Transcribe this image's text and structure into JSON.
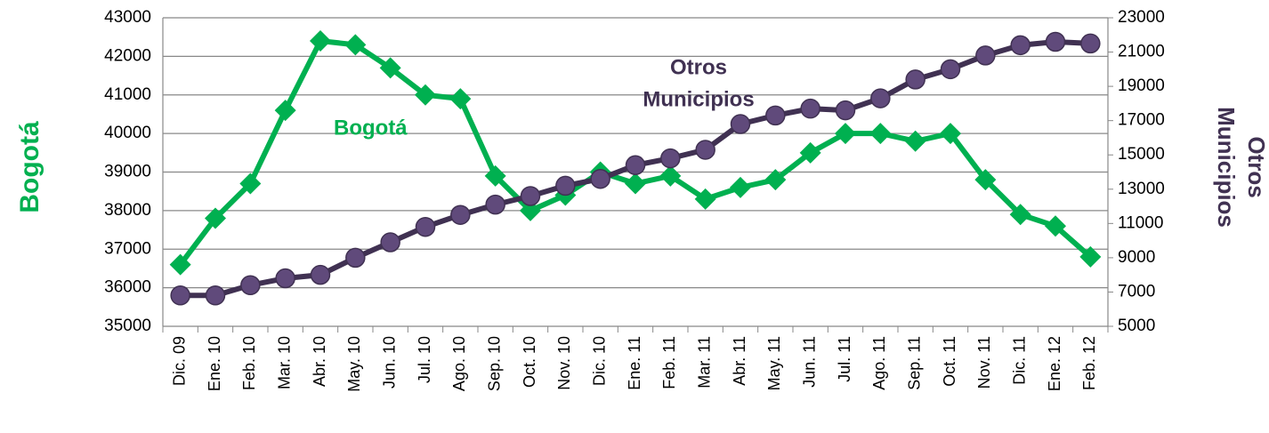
{
  "chart_data": {
    "type": "line",
    "categories": [
      "Dic. 09",
      "Ene. 10",
      "Feb. 10",
      "Mar. 10",
      "Abr. 10",
      "May. 10",
      "Jun. 10",
      "Jul. 10",
      "Ago. 10",
      "Sep. 10",
      "Oct. 10",
      "Nov. 10",
      "Dic. 10",
      "Ene. 11",
      "Feb. 11",
      "Mar. 11",
      "Abr. 11",
      "May. 11",
      "Jun. 11",
      "Jul. 11",
      "Ago. 11",
      "Sep. 11",
      "Oct. 11",
      "Nov. 11",
      "Dic. 11",
      "Ene. 12",
      "Feb. 12"
    ],
    "series": [
      {
        "name": "Bogotá",
        "color": "#00b050",
        "marker": "diamond",
        "values": [
          36600,
          37800,
          38700,
          40600,
          42400,
          42300,
          41700,
          41000,
          40900,
          38900,
          38000,
          38400,
          39000,
          38700,
          38900,
          38300,
          38600,
          38800,
          39500,
          40000,
          40000,
          39800,
          40000,
          38800,
          37900,
          37600,
          36800
        ]
      },
      {
        "name": "Otros Municipios",
        "color": "#403152",
        "marker_color": "#604a7b",
        "marker": "circle",
        "axis": "y2",
        "values": [
          6800,
          6800,
          7400,
          7800,
          8000,
          9000,
          9900,
          10800,
          11500,
          12100,
          12600,
          13200,
          13600,
          14400,
          14800,
          15300,
          16800,
          17300,
          17700,
          17600,
          18300,
          19400,
          20000,
          20800,
          21400,
          21600,
          21500
        ]
      }
    ],
    "ylabel": "Bogotá",
    "y2label": [
      "Otros",
      "Municipios"
    ],
    "annotations": [
      {
        "lines": [
          "Bogotá"
        ],
        "color": "#00b050"
      },
      {
        "lines": [
          "Otros",
          "Municipios"
        ],
        "color": "#403152"
      }
    ],
    "ylim": [
      35000,
      43000
    ],
    "yticks": [
      35000,
      36000,
      37000,
      38000,
      39000,
      40000,
      41000,
      42000,
      43000
    ],
    "y2lim": [
      5000,
      23000
    ],
    "y2ticks": [
      5000,
      7000,
      9000,
      11000,
      13000,
      15000,
      17000,
      19000,
      21000,
      23000
    ],
    "grid": true
  }
}
